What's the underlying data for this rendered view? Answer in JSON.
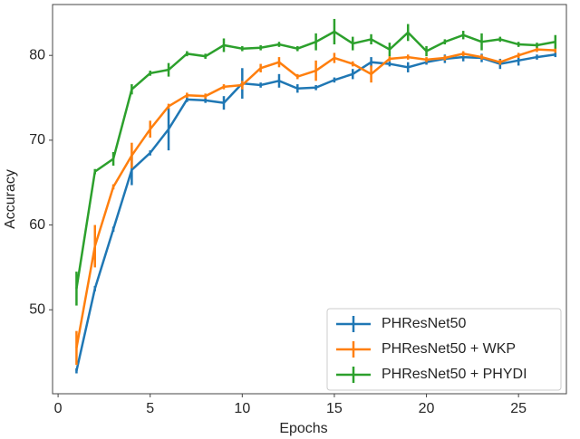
{
  "chart_data": {
    "type": "line",
    "x_label": "Epochs",
    "y_label": "Accuracy",
    "x": [
      1,
      2,
      3,
      4,
      5,
      6,
      7,
      8,
      9,
      10,
      11,
      12,
      13,
      14,
      15,
      16,
      17,
      18,
      19,
      20,
      21,
      22,
      23,
      24,
      25,
      26,
      27
    ],
    "series": [
      {
        "name": "PHResNet50",
        "color": "#1f77b4",
        "values": [
          42.8,
          52.5,
          59.5,
          66.5,
          68.5,
          71.3,
          74.8,
          74.7,
          74.4,
          76.7,
          76.5,
          77.0,
          76.1,
          76.2,
          77.1,
          77.8,
          79.2,
          79.0,
          78.6,
          79.2,
          79.6,
          79.8,
          79.7,
          79.0,
          79.4,
          79.8,
          80.1
        ],
        "errors": [
          0.3,
          0.3,
          0.3,
          1.8,
          0.3,
          2.5,
          0.3,
          0.3,
          0.8,
          1.8,
          0.3,
          0.8,
          0.5,
          0.3,
          0.3,
          0.6,
          0.6,
          0.3,
          0.6,
          0.3,
          0.5,
          0.5,
          0.5,
          0.6,
          0.6,
          0.3,
          0.3
        ]
      },
      {
        "name": "PHResNet50 + WKP",
        "color": "#ff7f0e",
        "values": [
          45.5,
          57.5,
          64.5,
          68.2,
          71.3,
          74.0,
          75.3,
          75.2,
          76.3,
          76.5,
          78.5,
          79.2,
          77.5,
          78.2,
          79.7,
          79.0,
          77.8,
          79.6,
          79.8,
          79.5,
          79.7,
          80.2,
          79.8,
          79.2,
          80.0,
          80.7,
          80.6
        ],
        "errors": [
          2.0,
          2.5,
          0.3,
          1.5,
          1.0,
          0.3,
          0.3,
          0.3,
          0.3,
          0.5,
          0.5,
          0.6,
          0.3,
          1.2,
          0.6,
          0.3,
          1.0,
          0.3,
          0.3,
          0.3,
          0.3,
          0.3,
          0.3,
          0.3,
          0.3,
          0.3,
          0.3
        ]
      },
      {
        "name": "PHResNet50 + PHYDI",
        "color": "#2ca02c",
        "values": [
          52.5,
          66.3,
          67.8,
          76.0,
          77.9,
          78.3,
          80.2,
          79.9,
          81.2,
          80.8,
          80.9,
          81.3,
          80.8,
          81.6,
          82.8,
          81.4,
          81.9,
          80.7,
          82.7,
          80.5,
          81.6,
          82.4,
          81.6,
          81.9,
          81.3,
          81.2,
          81.6
        ],
        "errors": [
          2.0,
          0.3,
          0.8,
          0.6,
          0.3,
          0.8,
          0.3,
          0.3,
          0.8,
          0.3,
          0.3,
          0.3,
          0.3,
          1.0,
          1.5,
          0.8,
          0.6,
          0.8,
          1.0,
          0.6,
          0.3,
          0.5,
          1.0,
          0.3,
          0.3,
          0.3,
          0.8
        ]
      }
    ],
    "xlim": [
      -0.3,
      27.6
    ],
    "ylim": [
      40.1,
      86
    ],
    "xticks": [
      0,
      5,
      10,
      15,
      20,
      25
    ],
    "yticks": [
      50,
      60,
      70,
      80
    ],
    "legend": "lower right"
  }
}
